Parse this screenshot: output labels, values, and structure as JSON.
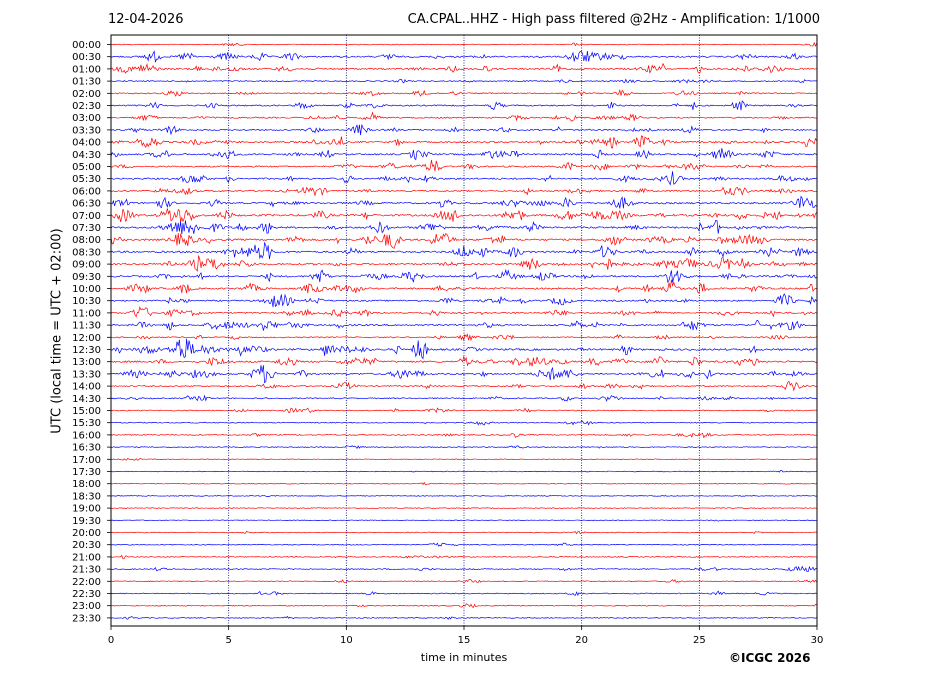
{
  "header": {
    "date": "12-04-2026",
    "title": "CA.CPAL..HHZ - High pass filtered @2Hz - Amplification: 1/1000"
  },
  "copyright": "©ICGC 2026",
  "colors": {
    "red_trace": "#ff0000",
    "blue_trace": "#0000ff",
    "grid": "#000080",
    "frame": "#000000"
  },
  "chart_data": {
    "type": "line",
    "title": "CA.CPAL..HHZ - High pass filtered @2Hz - Amplification: 1/1000",
    "xlabel": "time in minutes",
    "ylabel": "UTC (local time = UTC + 02:00)",
    "xlim": [
      0,
      30
    ],
    "x_ticks": [
      0,
      5,
      10,
      15,
      20,
      25,
      30
    ],
    "vertical_grid_at": [
      5,
      10,
      15,
      20,
      25
    ],
    "grid": true,
    "legend": "none",
    "rows": [
      "00:00",
      "00:30",
      "01:00",
      "01:30",
      "02:00",
      "02:30",
      "03:00",
      "03:30",
      "04:00",
      "04:30",
      "05:00",
      "05:30",
      "06:00",
      "06:30",
      "07:00",
      "07:30",
      "08:00",
      "08:30",
      "09:00",
      "09:30",
      "10:00",
      "10:30",
      "11:00",
      "11:30",
      "12:00",
      "12:30",
      "13:00",
      "13:30",
      "14:00",
      "14:30",
      "15:00",
      "15:30",
      "16:00",
      "16:30",
      "17:00",
      "17:30",
      "18:00",
      "18:30",
      "19:00",
      "19:30",
      "20:00",
      "20:30",
      "21:00",
      "21:30",
      "22:00",
      "22:30",
      "23:00",
      "23:30"
    ],
    "row_colors_alternate": [
      "red",
      "blue"
    ],
    "activity_level": [
      0.1,
      0.6,
      0.7,
      0.3,
      0.4,
      0.5,
      0.45,
      0.55,
      0.75,
      0.7,
      0.6,
      0.7,
      0.55,
      0.75,
      0.95,
      0.9,
      0.85,
      0.85,
      0.85,
      0.75,
      0.75,
      0.6,
      0.6,
      0.7,
      0.4,
      0.9,
      0.85,
      0.75,
      0.4,
      0.35,
      0.25,
      0.2,
      0.25,
      0.15,
      0.02,
      0.02,
      0.02,
      0.03,
      0.05,
      0.05,
      0.1,
      0.12,
      0.15,
      0.25,
      0.15,
      0.2,
      0.15,
      0.1
    ]
  }
}
